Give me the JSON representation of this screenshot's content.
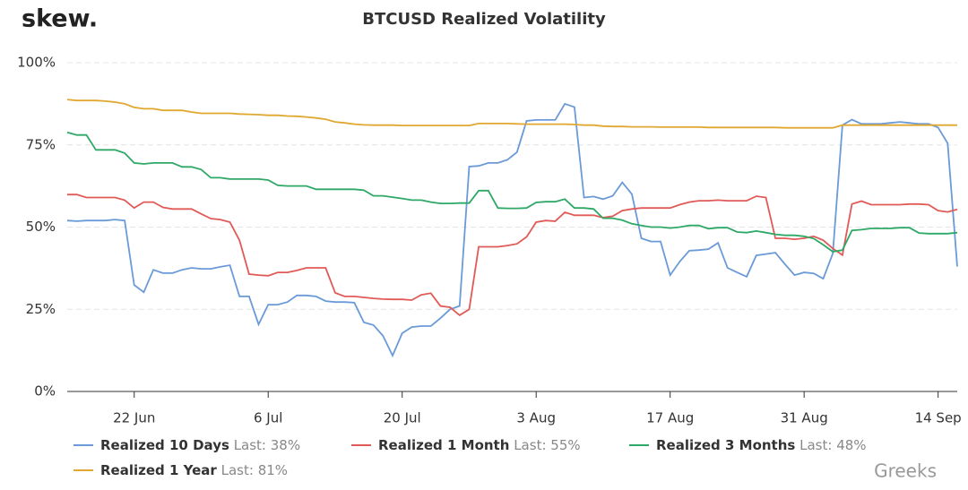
{
  "brand": "skew.",
  "watermark": "Greeks",
  "chart_data": {
    "type": "line",
    "title": "BTCUSD Realized Volatility",
    "categories": [
      null,
      null,
      null,
      null,
      null,
      null,
      null,
      "22 Jun",
      null,
      null,
      null,
      null,
      null,
      null,
      null,
      null,
      null,
      null,
      null,
      null,
      null,
      "6 Jul",
      null,
      null,
      null,
      null,
      null,
      null,
      null,
      null,
      null,
      null,
      null,
      null,
      null,
      "20 Jul",
      null,
      null,
      null,
      null,
      null,
      null,
      null,
      null,
      null,
      null,
      null,
      null,
      null,
      "3 Aug",
      null,
      null,
      null,
      null,
      null,
      null,
      null,
      null,
      null,
      null,
      null,
      null,
      null,
      "17 Aug",
      null,
      null,
      null,
      null,
      null,
      null,
      null,
      null,
      null,
      null,
      null,
      null,
      null,
      "31 Aug",
      null,
      null,
      null,
      null,
      null,
      null,
      null,
      null,
      null,
      null,
      null,
      null,
      null,
      "14 Sep",
      null,
      null
    ],
    "ylim": [
      0,
      100
    ],
    "yticks": [
      {
        "value": 0,
        "label": "0%"
      },
      {
        "value": 25,
        "label": "25%"
      },
      {
        "value": 50,
        "label": "50%"
      },
      {
        "value": 75,
        "label": "75%"
      },
      {
        "value": 100,
        "label": "100%"
      }
    ],
    "grid": true,
    "series": [
      {
        "name": "Realized 10 Days",
        "legend_note": "Last: 38%",
        "color": "#6a9ad8",
        "values": [
          52,
          51.8,
          52,
          52,
          52,
          52.3,
          52,
          32.4,
          30.2,
          37,
          36,
          36,
          37,
          37.6,
          37.3,
          37.3,
          37.9,
          38.4,
          28.9,
          28.9,
          20.4,
          26.4,
          26.4,
          27.2,
          29.2,
          29.2,
          28.9,
          27.5,
          27.2,
          27.2,
          27,
          21,
          20.2,
          16.9,
          10.9,
          17.7,
          19.6,
          19.9,
          19.9,
          22.3,
          25,
          26,
          68.4,
          68.6,
          69.5,
          69.5,
          70.5,
          72.8,
          82.3,
          82.6,
          82.6,
          82.6,
          87.5,
          86.5,
          59,
          59.3,
          58.5,
          59.5,
          63.6,
          60,
          46.6,
          45.6,
          45.6,
          35.4,
          39.5,
          42.8,
          43,
          43.3,
          45.2,
          37.6,
          36.2,
          34.9,
          41.4,
          41.8,
          42.2,
          38.7,
          35.4,
          36.2,
          35.9,
          34.3,
          42,
          81,
          82.7,
          81.4,
          81.4,
          81.4,
          81.7,
          82,
          81.7,
          81.4,
          81.4,
          80.3,
          75.5,
          38
        ]
      },
      {
        "name": "Realized 1 Month",
        "legend_note": "Last: 55%",
        "color": "#e05a57",
        "values": [
          59.9,
          59.9,
          59,
          59,
          59,
          59,
          58.2,
          55.8,
          57.6,
          57.6,
          56,
          55.5,
          55.5,
          55.5,
          54,
          52.6,
          52.3,
          51.5,
          46,
          35.7,
          35.4,
          35.2,
          36.2,
          36.2,
          36.8,
          37.6,
          37.6,
          37.6,
          30,
          28.9,
          28.9,
          28.6,
          28.3,
          28.1,
          28,
          28,
          27.8,
          29.4,
          29.9,
          26,
          25.6,
          23.2,
          25,
          44,
          44,
          44,
          44.4,
          44.9,
          47,
          51.5,
          52,
          51.8,
          54.5,
          53.6,
          53.6,
          53.6,
          52.9,
          53.3,
          55,
          55.5,
          55.8,
          55.8,
          55.8,
          55.8,
          56.8,
          57.6,
          58,
          58,
          58.2,
          58,
          58,
          58,
          59.4,
          59,
          46.6,
          46.6,
          46.3,
          46.6,
          47.2,
          46,
          43.5,
          41.5,
          57,
          57.9,
          56.8,
          56.8,
          56.8,
          56.8,
          57,
          57,
          56.8,
          55,
          54.6,
          55.4
        ]
      },
      {
        "name": "Realized 3 Months",
        "legend_note": "Last: 48%",
        "color": "#2ea866",
        "values": [
          78.8,
          78,
          78,
          73.5,
          73.5,
          73.5,
          72.5,
          69.5,
          69.2,
          69.5,
          69.5,
          69.5,
          68.3,
          68.3,
          67.5,
          65,
          65,
          64.6,
          64.6,
          64.6,
          64.6,
          64.3,
          62.7,
          62.5,
          62.5,
          62.5,
          61.5,
          61.5,
          61.5,
          61.5,
          61.5,
          61.2,
          59.5,
          59.5,
          59.1,
          58.7,
          58.2,
          58.2,
          57.6,
          57.2,
          57.2,
          57.3,
          57.3,
          61.1,
          61.1,
          55.8,
          55.7,
          55.7,
          55.8,
          57.5,
          57.7,
          57.7,
          58.5,
          55.8,
          55.8,
          55.5,
          52.7,
          52.7,
          52.1,
          51,
          50.5,
          50,
          50,
          49.7,
          50,
          50.5,
          50.5,
          49.5,
          49.8,
          49.8,
          48.5,
          48.3,
          48.8,
          48.3,
          47.8,
          47.5,
          47.5,
          47.2,
          46.5,
          44.6,
          42.5,
          43,
          49,
          49.2,
          49.6,
          49.6,
          49.6,
          49.8,
          49.8,
          48.2,
          48,
          48,
          48,
          48.3
        ]
      },
      {
        "name": "Realized 1 Year",
        "legend_note": "Last: 81%",
        "color": "#e0a830",
        "values": [
          88.8,
          88.5,
          88.5,
          88.5,
          88.3,
          88,
          87.5,
          86.4,
          86,
          86,
          85.5,
          85.5,
          85.5,
          85,
          84.6,
          84.6,
          84.6,
          84.6,
          84.4,
          84.3,
          84.2,
          84,
          84,
          83.8,
          83.7,
          83.5,
          83.2,
          82.8,
          82,
          81.7,
          81.3,
          81.1,
          81,
          81,
          81,
          80.9,
          80.9,
          80.9,
          80.9,
          80.9,
          80.9,
          80.9,
          80.9,
          81.5,
          81.5,
          81.5,
          81.5,
          81.4,
          81.3,
          81.3,
          81.3,
          81.3,
          81.3,
          81.2,
          81,
          81,
          80.7,
          80.6,
          80.6,
          80.5,
          80.5,
          80.5,
          80.4,
          80.4,
          80.4,
          80.4,
          80.4,
          80.3,
          80.3,
          80.3,
          80.3,
          80.3,
          80.3,
          80.3,
          80.3,
          80.2,
          80.2,
          80.2,
          80.2,
          80.2,
          80.2,
          81,
          81,
          81,
          81,
          81,
          81,
          81,
          81,
          81,
          81,
          81,
          81,
          81
        ]
      }
    ]
  }
}
